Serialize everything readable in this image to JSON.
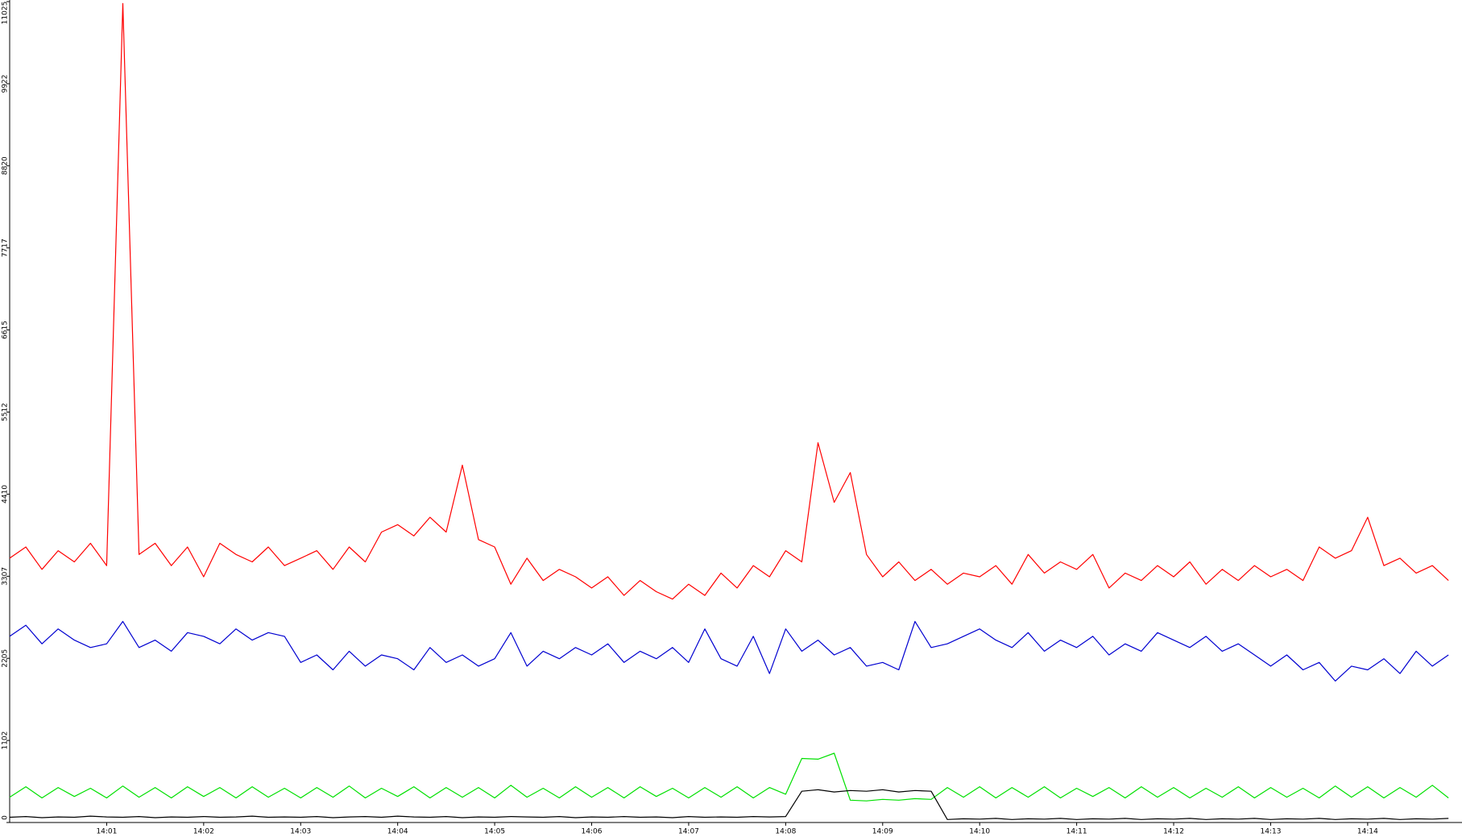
{
  "chart_data": {
    "type": "line",
    "categories": [
      null,
      null,
      null,
      null,
      null,
      null,
      "14:01",
      null,
      null,
      null,
      null,
      null,
      "14:02",
      null,
      null,
      null,
      null,
      null,
      "14:03",
      null,
      null,
      null,
      null,
      null,
      "14:04",
      null,
      null,
      null,
      null,
      null,
      "14:05",
      null,
      null,
      null,
      null,
      null,
      "14:06",
      null,
      null,
      null,
      null,
      null,
      "14:07",
      null,
      null,
      null,
      null,
      null,
      "14:08",
      null,
      null,
      null,
      null,
      null,
      "14:09",
      null,
      null,
      null,
      null,
      null,
      "14:10",
      null,
      null,
      null,
      null,
      null,
      "14:11",
      null,
      null,
      null,
      null,
      null,
      "14:12",
      null,
      null,
      null,
      null,
      null,
      "14:13",
      null,
      null,
      null,
      null,
      null,
      "14:14",
      null,
      null,
      null,
      null,
      null
    ],
    "series": [
      {
        "color": "#ff0000",
        "values": [
          3550,
          3700,
          3400,
          3650,
          3500,
          3750,
          3450,
          11000,
          3600,
          3750,
          3450,
          3700,
          3300,
          3750,
          3600,
          3500,
          3700,
          3450,
          3550,
          3650,
          3400,
          3700,
          3500,
          3900,
          4000,
          3850,
          4100,
          3900,
          4800,
          3800,
          3700,
          3200,
          3550,
          3250,
          3400,
          3300,
          3150,
          3300,
          3050,
          3250,
          3100,
          3000,
          3200,
          3050,
          3350,
          3150,
          3450,
          3300,
          3650,
          3500,
          5100,
          4300,
          4700,
          3600,
          3300,
          3500,
          3250,
          3400,
          3200,
          3350,
          3300,
          3450,
          3200,
          3600,
          3350,
          3500,
          3400,
          3600,
          3150,
          3350,
          3250,
          3450,
          3300,
          3500,
          3200,
          3400,
          3250,
          3450,
          3300,
          3400,
          3250,
          3700,
          3550,
          3650,
          4100,
          3450,
          3550,
          3350,
          3450,
          3250
        ]
      },
      {
        "color": "#0000d0",
        "values": [
          2500,
          2650,
          2400,
          2600,
          2450,
          2350,
          2400,
          2700,
          2350,
          2450,
          2300,
          2550,
          2500,
          2400,
          2600,
          2450,
          2550,
          2500,
          2150,
          2250,
          2050,
          2300,
          2100,
          2250,
          2200,
          2050,
          2350,
          2150,
          2250,
          2100,
          2200,
          2550,
          2100,
          2300,
          2200,
          2350,
          2250,
          2400,
          2150,
          2300,
          2200,
          2350,
          2150,
          2600,
          2200,
          2100,
          2500,
          2000,
          2600,
          2300,
          2450,
          2250,
          2350,
          2100,
          2150,
          2050,
          2700,
          2350,
          2400,
          2500,
          2600,
          2450,
          2350,
          2550,
          2300,
          2450,
          2350,
          2500,
          2250,
          2400,
          2300,
          2550,
          2450,
          2350,
          2500,
          2300,
          2400,
          2250,
          2100,
          2250,
          2050,
          2150,
          1900,
          2100,
          2050,
          2200,
          2000,
          2300,
          2100,
          2250
        ]
      },
      {
        "color": "#00e000",
        "values": [
          340,
          480,
          330,
          470,
          350,
          460,
          330,
          490,
          340,
          470,
          330,
          480,
          350,
          470,
          330,
          480,
          340,
          460,
          330,
          470,
          340,
          490,
          330,
          460,
          350,
          480,
          330,
          470,
          340,
          470,
          330,
          500,
          340,
          460,
          330,
          480,
          340,
          470,
          330,
          480,
          350,
          460,
          330,
          470,
          340,
          480,
          330,
          470,
          380,
          860,
          850,
          930,
          300,
          290,
          310,
          300,
          320,
          310,
          470,
          340,
          480,
          330,
          470,
          340,
          480,
          330,
          460,
          350,
          470,
          330,
          480,
          340,
          470,
          330,
          460,
          340,
          480,
          330,
          470,
          340,
          460,
          330,
          490,
          340,
          480,
          330,
          470,
          340,
          500,
          330
        ]
      },
      {
        "color": "#000000",
        "values": [
          70,
          80,
          65,
          75,
          70,
          85,
          75,
          70,
          80,
          65,
          75,
          70,
          80,
          70,
          75,
          85,
          70,
          75,
          70,
          80,
          65,
          75,
          80,
          70,
          85,
          75,
          70,
          80,
          65,
          75,
          70,
          80,
          75,
          70,
          80,
          65,
          75,
          70,
          80,
          70,
          75,
          65,
          80,
          70,
          75,
          70,
          80,
          75,
          80,
          420,
          440,
          410,
          430,
          420,
          440,
          410,
          430,
          420,
          40,
          50,
          45,
          55,
          40,
          50,
          45,
          55,
          40,
          50,
          45,
          55,
          40,
          50,
          45,
          55,
          40,
          50,
          45,
          55,
          40,
          50,
          45,
          55,
          40,
          50,
          45,
          55,
          40,
          50,
          45,
          55
        ]
      }
    ],
    "ylim": [
      0,
      11025
    ],
    "yticks": [
      0,
      1102,
      2205,
      3307,
      4410,
      5512,
      6615,
      7717,
      8820,
      9922,
      11025
    ]
  }
}
